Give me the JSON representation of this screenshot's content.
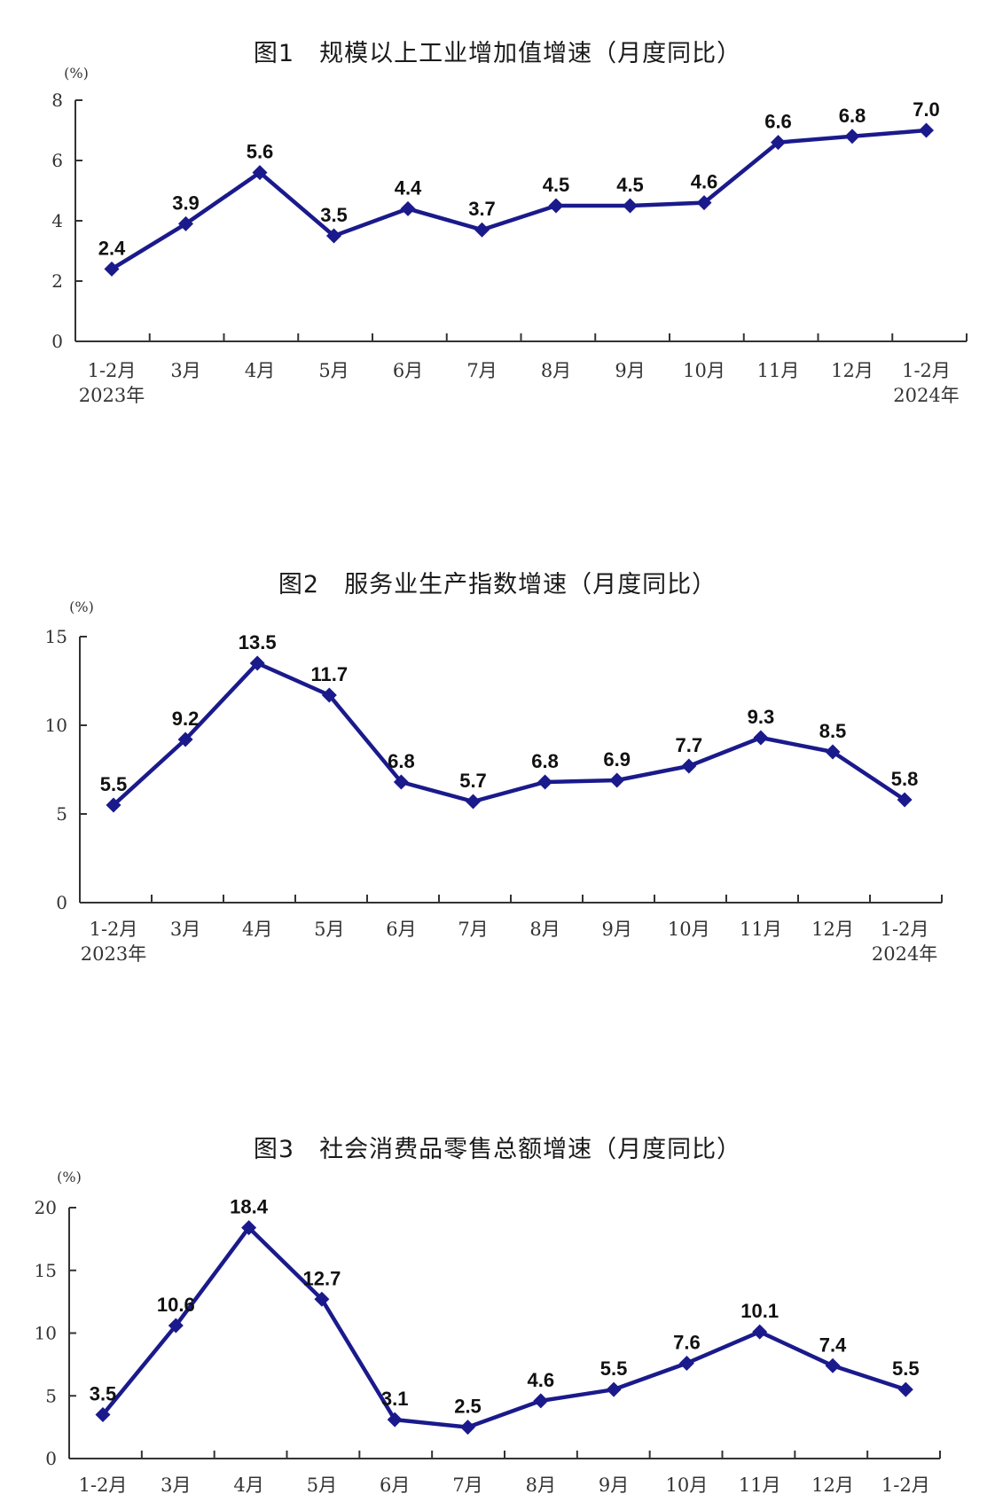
{
  "chart_data": [
    {
      "type": "line",
      "title": "图1　规模以上工业增加值增速（月度同比）",
      "unit_label": "(%)",
      "categories": [
        "1-2月",
        "3月",
        "4月",
        "5月",
        "6月",
        "7月",
        "8月",
        "9月",
        "10月",
        "11月",
        "12月",
        "1-2月"
      ],
      "year_labels": {
        "first": "2023年",
        "last": "2024年"
      },
      "values": [
        2.4,
        3.9,
        5.6,
        3.5,
        4.4,
        3.7,
        4.5,
        4.5,
        4.6,
        6.6,
        6.8,
        7.0
      ],
      "value_labels": [
        "2.4",
        "3.9",
        "5.6",
        "3.5",
        "4.4",
        "3.7",
        "4.5",
        "4.5",
        "4.6",
        "6.6",
        "6.8",
        "7.0"
      ],
      "ylim": [
        0,
        8
      ],
      "yticks": [
        0,
        2,
        4,
        6,
        8
      ],
      "ytick_labels": [
        "0",
        "2",
        "4",
        "6",
        "8"
      ],
      "line_color": "#1a1a8c",
      "grid": false
    },
    {
      "type": "line",
      "title": "图2　服务业生产指数增速（月度同比）",
      "unit_label": "(%)",
      "categories": [
        "1-2月",
        "3月",
        "4月",
        "5月",
        "6月",
        "7月",
        "8月",
        "9月",
        "10月",
        "11月",
        "12月",
        "1-2月"
      ],
      "year_labels": {
        "first": "2023年",
        "last": "2024年"
      },
      "values": [
        5.5,
        9.2,
        13.5,
        11.7,
        6.8,
        5.7,
        6.8,
        6.9,
        7.7,
        9.3,
        8.5,
        5.8
      ],
      "value_labels": [
        "5.5",
        "9.2",
        "13.5",
        "11.7",
        "6.8",
        "5.7",
        "6.8",
        "6.9",
        "7.7",
        "9.3",
        "8.5",
        "5.8"
      ],
      "ylim": [
        0,
        15
      ],
      "yticks": [
        0,
        5,
        10,
        15
      ],
      "ytick_labels": [
        "0",
        "5",
        "10",
        "15"
      ],
      "line_color": "#1a1a8c",
      "grid": false
    },
    {
      "type": "line",
      "title": "图3　社会消费品零售总额增速（月度同比）",
      "unit_label": "(%)",
      "categories": [
        "1-2月",
        "3月",
        "4月",
        "5月",
        "6月",
        "7月",
        "8月",
        "9月",
        "10月",
        "11月",
        "12月",
        "1-2月"
      ],
      "year_labels": {
        "first": "",
        "last": ""
      },
      "values": [
        3.5,
        10.6,
        18.4,
        12.7,
        3.1,
        2.5,
        4.6,
        5.5,
        7.6,
        10.1,
        7.4,
        5.5
      ],
      "value_labels": [
        "3.5",
        "10.6",
        "18.4",
        "12.7",
        "3.1",
        "2.5",
        "4.6",
        "5.5",
        "7.6",
        "10.1",
        "7.4",
        "5.5"
      ],
      "ylim": [
        0,
        20
      ],
      "yticks": [
        0,
        5,
        10,
        15,
        20
      ],
      "ytick_labels": [
        "0",
        "5",
        "10",
        "15",
        "20"
      ],
      "line_color": "#1a1a8c",
      "grid": false
    }
  ]
}
